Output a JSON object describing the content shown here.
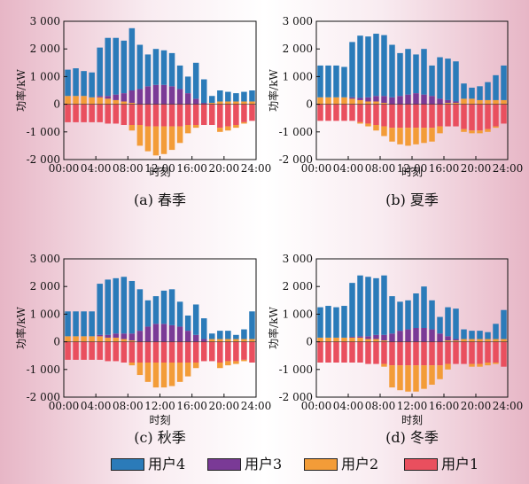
{
  "colors": {
    "user4": "#2b7bb9",
    "user3": "#7a3a96",
    "user2": "#f39c38",
    "user1": "#e94f5e",
    "axis": "#111111"
  },
  "legend": [
    {
      "key": "user4",
      "label": "用户4"
    },
    {
      "key": "user3",
      "label": "用户3"
    },
    {
      "key": "user2",
      "label": "用户2"
    },
    {
      "key": "user1",
      "label": "用户1"
    }
  ],
  "chart_data": [
    {
      "type": "bar",
      "title": "(a) 春季",
      "xlabel": "时刻",
      "ylabel": "功率/kW",
      "ylim": [
        -2000,
        3000
      ],
      "yticks": [
        "3 000",
        "2 000",
        "1 000",
        "0",
        "-1 000",
        "-2 000"
      ],
      "xticks": [
        "00:00",
        "04:00",
        "08:00",
        "12:00",
        "16:00",
        "20:00",
        "24:00"
      ],
      "hours": [
        0,
        1,
        2,
        3,
        4,
        5,
        6,
        7,
        8,
        9,
        10,
        11,
        12,
        13,
        14,
        15,
        16,
        17,
        18,
        19,
        20,
        21,
        22,
        23
      ],
      "series": [
        {
          "name": "用户4",
          "values": [
            950,
            1000,
            900,
            900,
            1750,
            2100,
            2050,
            1900,
            2250,
            1600,
            1150,
            1300,
            1250,
            1200,
            850,
            600,
            1300,
            850,
            250,
            400,
            350,
            300,
            350,
            400
          ]
        },
        {
          "name": "用户3",
          "values": [
            0,
            0,
            0,
            0,
            50,
            100,
            200,
            300,
            450,
            550,
            650,
            700,
            700,
            650,
            550,
            400,
            200,
            50,
            0,
            0,
            0,
            0,
            0,
            0
          ]
        },
        {
          "name": "用户2",
          "values": [
            300,
            300,
            300,
            250,
            250,
            200,
            150,
            100,
            50,
            0,
            0,
            0,
            0,
            0,
            0,
            0,
            0,
            0,
            50,
            100,
            100,
            100,
            100,
            100
          ]
        },
        {
          "name": "用户1",
          "values": [
            -650,
            -650,
            -650,
            -650,
            -650,
            -700,
            -700,
            -750,
            -750,
            -750,
            -800,
            -800,
            -800,
            -800,
            -800,
            -750,
            -750,
            -750,
            -750,
            -850,
            -800,
            -750,
            -650,
            -600
          ]
        },
        {
          "name": "用户2 (负)",
          "values": [
            0,
            0,
            0,
            0,
            0,
            0,
            0,
            0,
            -200,
            -750,
            -900,
            -1050,
            -1000,
            -850,
            -600,
            -300,
            -100,
            0,
            0,
            -150,
            -150,
            -100,
            -50,
            0
          ]
        }
      ]
    },
    {
      "type": "bar",
      "title": "(b) 夏季",
      "xlabel": "时刻",
      "ylabel": "功率/kW",
      "ylim": [
        -2000,
        3000
      ],
      "yticks": [
        "3 000",
        "2 000",
        "1 000",
        "0",
        "-1 000",
        "-2 000"
      ],
      "xticks": [
        "00:00",
        "04:00",
        "08:00",
        "12:00",
        "16:00",
        "20:00",
        "24:00"
      ],
      "hours": [
        0,
        1,
        2,
        3,
        4,
        5,
        6,
        7,
        8,
        9,
        10,
        11,
        12,
        13,
        14,
        15,
        16,
        17,
        18,
        19,
        20,
        21,
        22,
        23
      ],
      "series": [
        {
          "name": "用户4",
          "values": [
            1150,
            1150,
            1150,
            1100,
            2000,
            2250,
            2200,
            2250,
            2200,
            1900,
            1550,
            1650,
            1400,
            1650,
            1100,
            1500,
            1500,
            1450,
            550,
            400,
            500,
            650,
            900,
            1250
          ]
        },
        {
          "name": "用户3",
          "values": [
            0,
            0,
            0,
            0,
            50,
            80,
            150,
            200,
            250,
            250,
            300,
            350,
            400,
            350,
            300,
            200,
            100,
            50,
            0,
            0,
            0,
            0,
            0,
            0
          ]
        },
        {
          "name": "用户2",
          "values": [
            250,
            250,
            250,
            250,
            200,
            150,
            100,
            100,
            50,
            0,
            0,
            0,
            0,
            0,
            0,
            0,
            50,
            50,
            200,
            200,
            150,
            150,
            150,
            150
          ]
        },
        {
          "name": "用户1",
          "values": [
            -600,
            -600,
            -600,
            -600,
            -600,
            -650,
            -700,
            -750,
            -800,
            -850,
            -850,
            -850,
            -850,
            -850,
            -850,
            -800,
            -800,
            -800,
            -900,
            -950,
            -950,
            -900,
            -800,
            -700
          ]
        },
        {
          "name": "用户2 (负)",
          "values": [
            0,
            0,
            0,
            0,
            0,
            -50,
            -100,
            -200,
            -350,
            -500,
            -600,
            -650,
            -600,
            -550,
            -500,
            -250,
            0,
            0,
            -100,
            -100,
            -100,
            -100,
            -50,
            0
          ]
        }
      ]
    },
    {
      "type": "bar",
      "title": "(c) 秋季",
      "xlabel": "时刻",
      "ylabel": "功率/kW",
      "ylim": [
        -2000,
        3000
      ],
      "yticks": [
        "3 000",
        "2 000",
        "1 000",
        "0",
        "-1 000",
        "-2 000"
      ],
      "xticks": [
        "00:00",
        "04:00",
        "08:00",
        "12:00",
        "16:00",
        "20:00",
        "24:00"
      ],
      "hours": [
        0,
        1,
        2,
        3,
        4,
        5,
        6,
        7,
        8,
        9,
        10,
        11,
        12,
        13,
        14,
        15,
        16,
        17,
        18,
        19,
        20,
        21,
        22,
        23
      ],
      "series": [
        {
          "name": "用户4",
          "values": [
            900,
            900,
            900,
            900,
            1850,
            2000,
            2000,
            2050,
            1900,
            1500,
            950,
            1000,
            1200,
            1300,
            900,
            550,
            1100,
            750,
            200,
            300,
            300,
            150,
            350,
            1000
          ]
        },
        {
          "name": "用户3",
          "values": [
            0,
            0,
            0,
            0,
            50,
            100,
            150,
            200,
            250,
            400,
            550,
            650,
            650,
            600,
            550,
            400,
            250,
            100,
            0,
            0,
            0,
            0,
            0,
            0
          ]
        },
        {
          "name": "用户2",
          "values": [
            200,
            200,
            200,
            200,
            200,
            150,
            150,
            100,
            50,
            0,
            0,
            0,
            0,
            0,
            0,
            0,
            0,
            0,
            100,
            100,
            100,
            100,
            100,
            100
          ]
        },
        {
          "name": "用户1",
          "values": [
            -650,
            -650,
            -650,
            -650,
            -650,
            -700,
            -700,
            -750,
            -750,
            -750,
            -750,
            -750,
            -750,
            -750,
            -750,
            -750,
            -750,
            -700,
            -700,
            -750,
            -700,
            -700,
            -650,
            -750
          ]
        },
        {
          "name": "用户2 (负)",
          "values": [
            0,
            0,
            0,
            0,
            0,
            0,
            0,
            0,
            -100,
            -450,
            -700,
            -900,
            -900,
            -850,
            -700,
            -500,
            -200,
            0,
            0,
            -200,
            -150,
            -100,
            -50,
            0
          ]
        }
      ]
    },
    {
      "type": "bar",
      "title": "(d) 冬季",
      "xlabel": "时刻",
      "ylabel": "功率/kW",
      "ylim": [
        -2000,
        3000
      ],
      "yticks": [
        "3 000",
        "2 000",
        "1 000",
        "0",
        "-1 000",
        "-2 000"
      ],
      "xticks": [
        "00:00",
        "04:00",
        "08:00",
        "12:00",
        "16:00",
        "20:00",
        "24:00"
      ],
      "hours": [
        0,
        1,
        2,
        3,
        4,
        5,
        6,
        7,
        8,
        9,
        10,
        11,
        12,
        13,
        14,
        15,
        16,
        17,
        18,
        19,
        20,
        21,
        22,
        23
      ],
      "series": [
        {
          "name": "用户4",
          "values": [
            1100,
            1150,
            1100,
            1150,
            1950,
            2200,
            2150,
            2050,
            2150,
            1350,
            1050,
            1050,
            1250,
            1500,
            1050,
            600,
            1050,
            1100,
            350,
            300,
            300,
            250,
            550,
            1050
          ]
        },
        {
          "name": "用户3",
          "values": [
            0,
            0,
            0,
            0,
            30,
            50,
            100,
            150,
            200,
            300,
            400,
            450,
            500,
            500,
            450,
            300,
            150,
            50,
            0,
            0,
            0,
            0,
            0,
            0
          ]
        },
        {
          "name": "用户2",
          "values": [
            150,
            150,
            150,
            150,
            150,
            150,
            100,
            100,
            50,
            0,
            0,
            0,
            0,
            0,
            0,
            0,
            50,
            50,
            100,
            100,
            100,
            100,
            100,
            100
          ]
        },
        {
          "name": "用户1",
          "values": [
            -750,
            -750,
            -750,
            -750,
            -750,
            -750,
            -800,
            -800,
            -800,
            -850,
            -850,
            -850,
            -850,
            -850,
            -850,
            -850,
            -800,
            -800,
            -800,
            -800,
            -800,
            -750,
            -750,
            -900
          ]
        },
        {
          "name": "用户2 (负)",
          "values": [
            0,
            0,
            0,
            0,
            0,
            0,
            0,
            0,
            -100,
            -800,
            -900,
            -950,
            -950,
            -850,
            -700,
            -500,
            -200,
            0,
            0,
            -100,
            -100,
            -100,
            -50,
            0
          ]
        }
      ]
    }
  ]
}
